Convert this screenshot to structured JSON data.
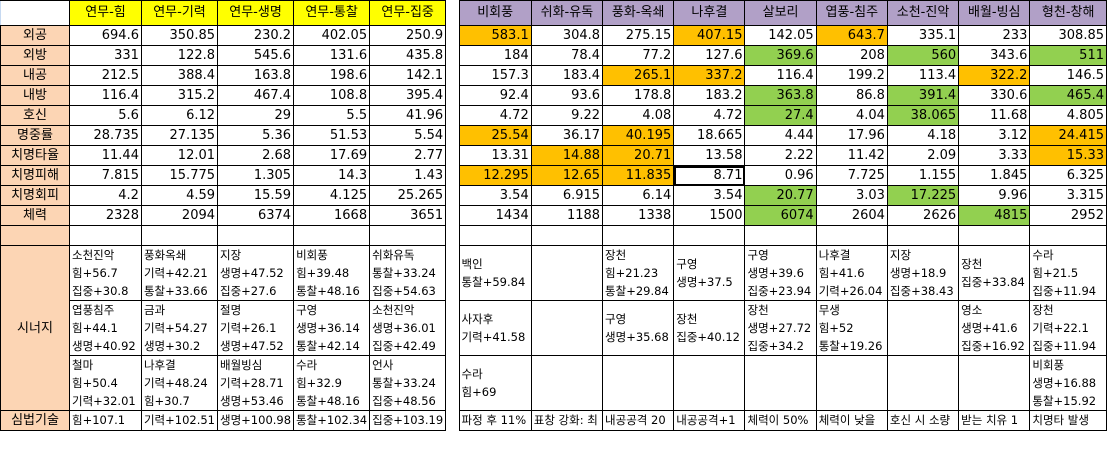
{
  "columns": {
    "yeonmu": [
      "연무-힘",
      "연무-기력",
      "연무-생명",
      "연무-통찰",
      "연무-집중"
    ],
    "others": [
      "비회풍",
      "쉬화-유독",
      "풍화-옥쇄",
      "나후결",
      "살보리",
      "엽풍-침주",
      "소천-진악",
      "배월-빙심",
      "형천-창해"
    ]
  },
  "rows": [
    {
      "label": "외공",
      "yeonmu": [
        "694.6",
        "350.85",
        "230.2",
        "402.05",
        "250.9"
      ],
      "others": [
        "583.1",
        "304.8",
        "275.15",
        "407.15",
        "142.05",
        "643.7",
        "335.1",
        "233",
        "308.85"
      ],
      "hl": [
        "o",
        "",
        "",
        "o",
        "",
        "o",
        "",
        "",
        ""
      ]
    },
    {
      "label": "외방",
      "yeonmu": [
        "331",
        "122.8",
        "545.6",
        "131.6",
        "435.8"
      ],
      "others": [
        "184",
        "78.4",
        "77.2",
        "127.6",
        "369.6",
        "208",
        "560",
        "343.6",
        "511"
      ],
      "hl": [
        "",
        "",
        "",
        "",
        "g",
        "",
        "g",
        "",
        "g"
      ]
    },
    {
      "label": "내공",
      "yeonmu": [
        "212.5",
        "388.4",
        "163.8",
        "198.6",
        "142.1"
      ],
      "others": [
        "157.3",
        "183.4",
        "265.1",
        "337.2",
        "116.4",
        "199.2",
        "113.4",
        "322.2",
        "146.5"
      ],
      "hl": [
        "",
        "",
        "o",
        "o",
        "",
        "",
        "",
        "o",
        ""
      ]
    },
    {
      "label": "내방",
      "yeonmu": [
        "116.4",
        "315.2",
        "467.4",
        "108.8",
        "395.4"
      ],
      "others": [
        "92.4",
        "93.6",
        "178.8",
        "183.2",
        "363.8",
        "86.8",
        "391.4",
        "330.6",
        "465.4"
      ],
      "hl": [
        "",
        "",
        "",
        "",
        "g",
        "",
        "g",
        "",
        "g"
      ]
    },
    {
      "label": "호신",
      "yeonmu": [
        "5.6",
        "6.12",
        "29",
        "5.5",
        "41.96"
      ],
      "others": [
        "4.72",
        "9.22",
        "4.08",
        "4.72",
        "27.4",
        "4.04",
        "38.065",
        "11.68",
        "4.805"
      ],
      "hl": [
        "",
        "",
        "",
        "",
        "g",
        "",
        "g",
        "",
        ""
      ]
    },
    {
      "label": "명중률",
      "yeonmu": [
        "28.735",
        "27.135",
        "5.36",
        "51.53",
        "5.54"
      ],
      "others": [
        "25.54",
        "36.17",
        "40.195",
        "18.665",
        "4.44",
        "17.96",
        "4.18",
        "3.12",
        "24.415"
      ],
      "hl": [
        "o",
        "",
        "o",
        "",
        "",
        "",
        "",
        "",
        "o"
      ]
    },
    {
      "label": "치명타율",
      "yeonmu": [
        "11.44",
        "12.01",
        "2.68",
        "17.69",
        "2.77"
      ],
      "others": [
        "13.31",
        "14.88",
        "20.71",
        "13.58",
        "2.22",
        "11.42",
        "2.09",
        "3.33",
        "15.33"
      ],
      "hl": [
        "",
        "o",
        "o",
        "",
        "",
        "",
        "",
        "",
        "o"
      ]
    },
    {
      "label": "치명피해",
      "yeonmu": [
        "7.815",
        "15.775",
        "1.305",
        "14.3",
        "1.43"
      ],
      "others": [
        "12.295",
        "12.65",
        "11.835",
        "8.71",
        "0.96",
        "7.725",
        "1.155",
        "1.845",
        "6.325"
      ],
      "hl": [
        "o",
        "o",
        "o",
        "sel",
        "",
        "",
        "",
        "",
        ""
      ]
    },
    {
      "label": "치명회피",
      "yeonmu": [
        "4.2",
        "4.59",
        "15.59",
        "4.125",
        "25.265"
      ],
      "others": [
        "3.54",
        "6.915",
        "6.14",
        "3.54",
        "20.77",
        "3.03",
        "17.225",
        "9.96",
        "3.315"
      ],
      "hl": [
        "",
        "",
        "",
        "",
        "g",
        "",
        "g",
        "",
        ""
      ]
    },
    {
      "label": "체력",
      "yeonmu": [
        "2328",
        "2094",
        "6374",
        "1668",
        "3651"
      ],
      "others": [
        "1434",
        "1188",
        "1338",
        "1500",
        "6074",
        "2604",
        "2626",
        "4815",
        "2952"
      ],
      "hl": [
        "",
        "",
        "",
        "",
        "g",
        "",
        "",
        "g",
        ""
      ]
    }
  ],
  "synergy": {
    "label": "시너지",
    "rows": [
      {
        "yeonmu": [
          [
            "소천진악",
            "힘+56.7",
            "집중+30.8"
          ],
          [
            "풍화옥쇄",
            "기력+42.21",
            "통찰+33.66"
          ],
          [
            "지장",
            "생명+47.52",
            "집중+27.6"
          ],
          [
            "비회풍",
            "힘+39.48",
            "통찰+48.16"
          ],
          [
            "쉬화유독",
            "통찰+33.24",
            "집중+54.63"
          ]
        ],
        "others": [
          [
            "백인",
            "통찰+59.84"
          ],
          [],
          [
            "장천",
            "힘+21.23",
            "통찰+29.84"
          ],
          [
            "구영",
            "생명+37.5"
          ],
          [
            "구영",
            "생명+39.6",
            "집중+23.94"
          ],
          [
            "나후결",
            "힘+41.6",
            "기력+26.04"
          ],
          [
            "지장",
            "생명+18.9",
            "집중+38.43"
          ],
          [
            "장천",
            "집중+33.84"
          ],
          [
            "수라",
            "힘+21.5",
            "집중+11.94"
          ]
        ]
      },
      {
        "yeonmu": [
          [
            "엽풍침주",
            "힘+44.1",
            "생명+40.92"
          ],
          [
            "금과",
            "기력+54.27",
            "생명+30.2"
          ],
          [
            "절명",
            "기력+26.1",
            "생명+47.52"
          ],
          [
            "구영",
            "생명+36.14",
            "통찰+42.14"
          ],
          [
            "소천진악",
            "생명+36.01",
            "집중+42.49"
          ]
        ],
        "others": [
          [
            "사자후",
            "기력+41.58"
          ],
          [],
          [
            "구영",
            "생명+35.68"
          ],
          [
            "장천",
            "집중+40.12"
          ],
          [
            "장천",
            "생명+27.72",
            "집중+34.2"
          ],
          [
            "무생",
            "힘+52",
            "통찰+19.26"
          ],
          [],
          [
            "영소",
            "생명+41.6",
            "집중+16.92"
          ],
          [
            "장천",
            "기력+22.1",
            "집중+11.94"
          ]
        ]
      },
      {
        "yeonmu": [
          [
            "철마",
            "힘+50.4",
            "기력+32.01"
          ],
          [
            "나후결",
            "기력+48.24",
            "힘+30.7"
          ],
          [
            "배월빙심",
            "기력+28.71",
            "생명+53.46"
          ],
          [
            "수라",
            "힘+32.9",
            "통찰+48.16"
          ],
          [
            "언사",
            "통찰+33.24",
            "집중+48.56"
          ]
        ],
        "others": [
          [
            "수라",
            "힘+69"
          ],
          [],
          [],
          [],
          [],
          [],
          [],
          [],
          [
            "비회풍",
            "생명+16.88",
            "통찰+15.92"
          ]
        ]
      }
    ]
  },
  "technique": {
    "label": "심법기술",
    "yeonmu": [
      "힘+107.1",
      "기력+102.51",
      "생명+100.98",
      "통찰+102.34",
      "집중+103.19"
    ],
    "others": [
      "파정 후 11%",
      "표창 강화: 최",
      "내공공격 20",
      "내공공격+1",
      "체력이 50%",
      "체력이 낮을",
      "호신 시 소량",
      "받는 치유 1",
      "치명타 발생"
    ]
  },
  "colors": {
    "label_bg": "#fcd5b4",
    "yeonmu_header_bg": "#ffff00",
    "other_header_bg": "#b1a0c7",
    "highlight_orange": "#ffc000",
    "highlight_green": "#92d050"
  }
}
